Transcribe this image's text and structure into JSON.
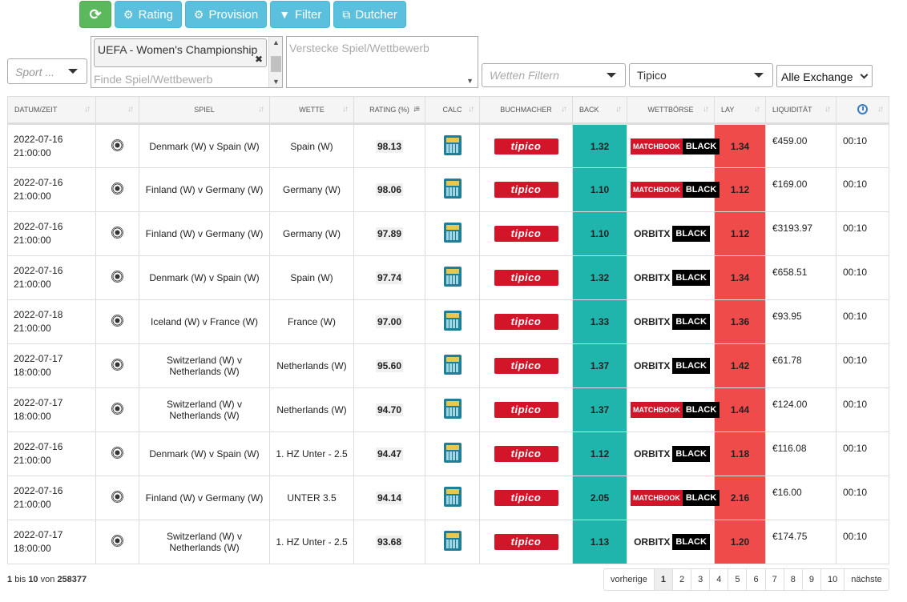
{
  "toolbar": {
    "refresh_label": "",
    "rating_label": "Rating",
    "provision_label": "Provision",
    "filter_label": "Filter",
    "dutcher_label": "Dutcher"
  },
  "filters": {
    "sport_placeholder": "Sport ...",
    "competition_chip": "UEFA - Women's Championship",
    "competition_placeholder": "Finde Spiel/Wettbewerb",
    "hide_placeholder": "Verstecke Spiel/Wettbewerb",
    "bets_placeholder": "Wetten Filtern",
    "bookmaker_value": "Tipico",
    "exchange_value": "Alle Exchange"
  },
  "table": {
    "headers": {
      "datetime": "DATUM/ZEIT",
      "sport": "",
      "event": "SPIEL",
      "bet": "WETTE",
      "rating": "RATING (%)",
      "calc": "CALC",
      "bookmaker": "BUCHMACHER",
      "back": "BACK",
      "exchange": "WETTBÖRSE",
      "lay": "LAY",
      "liquidity": "LIQUIDITÄT"
    },
    "rows": [
      {
        "date": "2022-07-16",
        "time": "21:00:00",
        "event": "Denmark (W) v Spain (W)",
        "bet": "Spain (W)",
        "rating": "98.13",
        "bookmaker": "tipico",
        "back": "1.32",
        "exchange": "matchbook",
        "lay": "1.34",
        "liquidity": "€459.00",
        "age": "00:10"
      },
      {
        "date": "2022-07-16",
        "time": "21:00:00",
        "event": "Finland (W) v Germany (W)",
        "bet": "Germany (W)",
        "rating": "98.06",
        "bookmaker": "tipico",
        "back": "1.10",
        "exchange": "matchbook",
        "lay": "1.12",
        "liquidity": "€169.00",
        "age": "00:10"
      },
      {
        "date": "2022-07-16",
        "time": "21:00:00",
        "event": "Finland (W) v Germany (W)",
        "bet": "Germany (W)",
        "rating": "97.89",
        "bookmaker": "tipico",
        "back": "1.10",
        "exchange": "orbitx",
        "lay": "1.12",
        "liquidity": "€3193.97",
        "age": "00:10"
      },
      {
        "date": "2022-07-16",
        "time": "21:00:00",
        "event": "Denmark (W) v Spain (W)",
        "bet": "Spain (W)",
        "rating": "97.74",
        "bookmaker": "tipico",
        "back": "1.32",
        "exchange": "orbitx",
        "lay": "1.34",
        "liquidity": "€658.51",
        "age": "00:10"
      },
      {
        "date": "2022-07-18",
        "time": "21:00:00",
        "event": "Iceland (W) v France (W)",
        "bet": "France (W)",
        "rating": "97.00",
        "bookmaker": "tipico",
        "back": "1.33",
        "exchange": "orbitx",
        "lay": "1.36",
        "liquidity": "€93.95",
        "age": "00:10"
      },
      {
        "date": "2022-07-17",
        "time": "18:00:00",
        "event": "Switzerland (W) v Netherlands (W)",
        "bet": "Netherlands (W)",
        "rating": "95.60",
        "bookmaker": "tipico",
        "back": "1.37",
        "exchange": "orbitx",
        "lay": "1.42",
        "liquidity": "€61.78",
        "age": "00:10"
      },
      {
        "date": "2022-07-17",
        "time": "18:00:00",
        "event": "Switzerland (W) v Netherlands (W)",
        "bet": "Netherlands (W)",
        "rating": "94.70",
        "bookmaker": "tipico",
        "back": "1.37",
        "exchange": "matchbook",
        "lay": "1.44",
        "liquidity": "€124.00",
        "age": "00:10"
      },
      {
        "date": "2022-07-16",
        "time": "21:00:00",
        "event": "Denmark (W) v Spain (W)",
        "bet": "1. HZ Unter - 2.5",
        "rating": "94.47",
        "bookmaker": "tipico",
        "back": "1.12",
        "exchange": "orbitx",
        "lay": "1.18",
        "liquidity": "€116.08",
        "age": "00:10"
      },
      {
        "date": "2022-07-16",
        "time": "21:00:00",
        "event": "Finland (W) v Germany (W)",
        "bet": "UNTER 3.5",
        "rating": "94.14",
        "bookmaker": "tipico",
        "back": "2.05",
        "exchange": "matchbook",
        "lay": "2.16",
        "liquidity": "€16.00",
        "age": "00:10"
      },
      {
        "date": "2022-07-17",
        "time": "18:00:00",
        "event": "Switzerland (W) v Netherlands (W)",
        "bet": "1. HZ Unter - 2.5",
        "rating": "93.68",
        "bookmaker": "tipico",
        "back": "1.13",
        "exchange": "orbitx",
        "lay": "1.20",
        "liquidity": "€174.75",
        "age": "00:10"
      }
    ]
  },
  "logos": {
    "tipico": "tipico",
    "matchbook": "MATCHBOOK",
    "orbitx": "ORBITX",
    "black": "BLACK"
  },
  "footer": {
    "from": "1",
    "to_word": "bis",
    "to": "10",
    "of_word": "von",
    "total": "258377"
  },
  "pagination": {
    "prev": "vorherige",
    "pages": [
      "1",
      "2",
      "3",
      "4",
      "5",
      "6",
      "7",
      "8",
      "9",
      "10"
    ],
    "current": "1",
    "next": "nächste"
  },
  "colors": {
    "back": "#1fb4ac",
    "lay": "#ef4b4b",
    "tipico": "#d3152a",
    "refresh_button": "#5cb85c",
    "info_buttons": "#5bc0de"
  }
}
